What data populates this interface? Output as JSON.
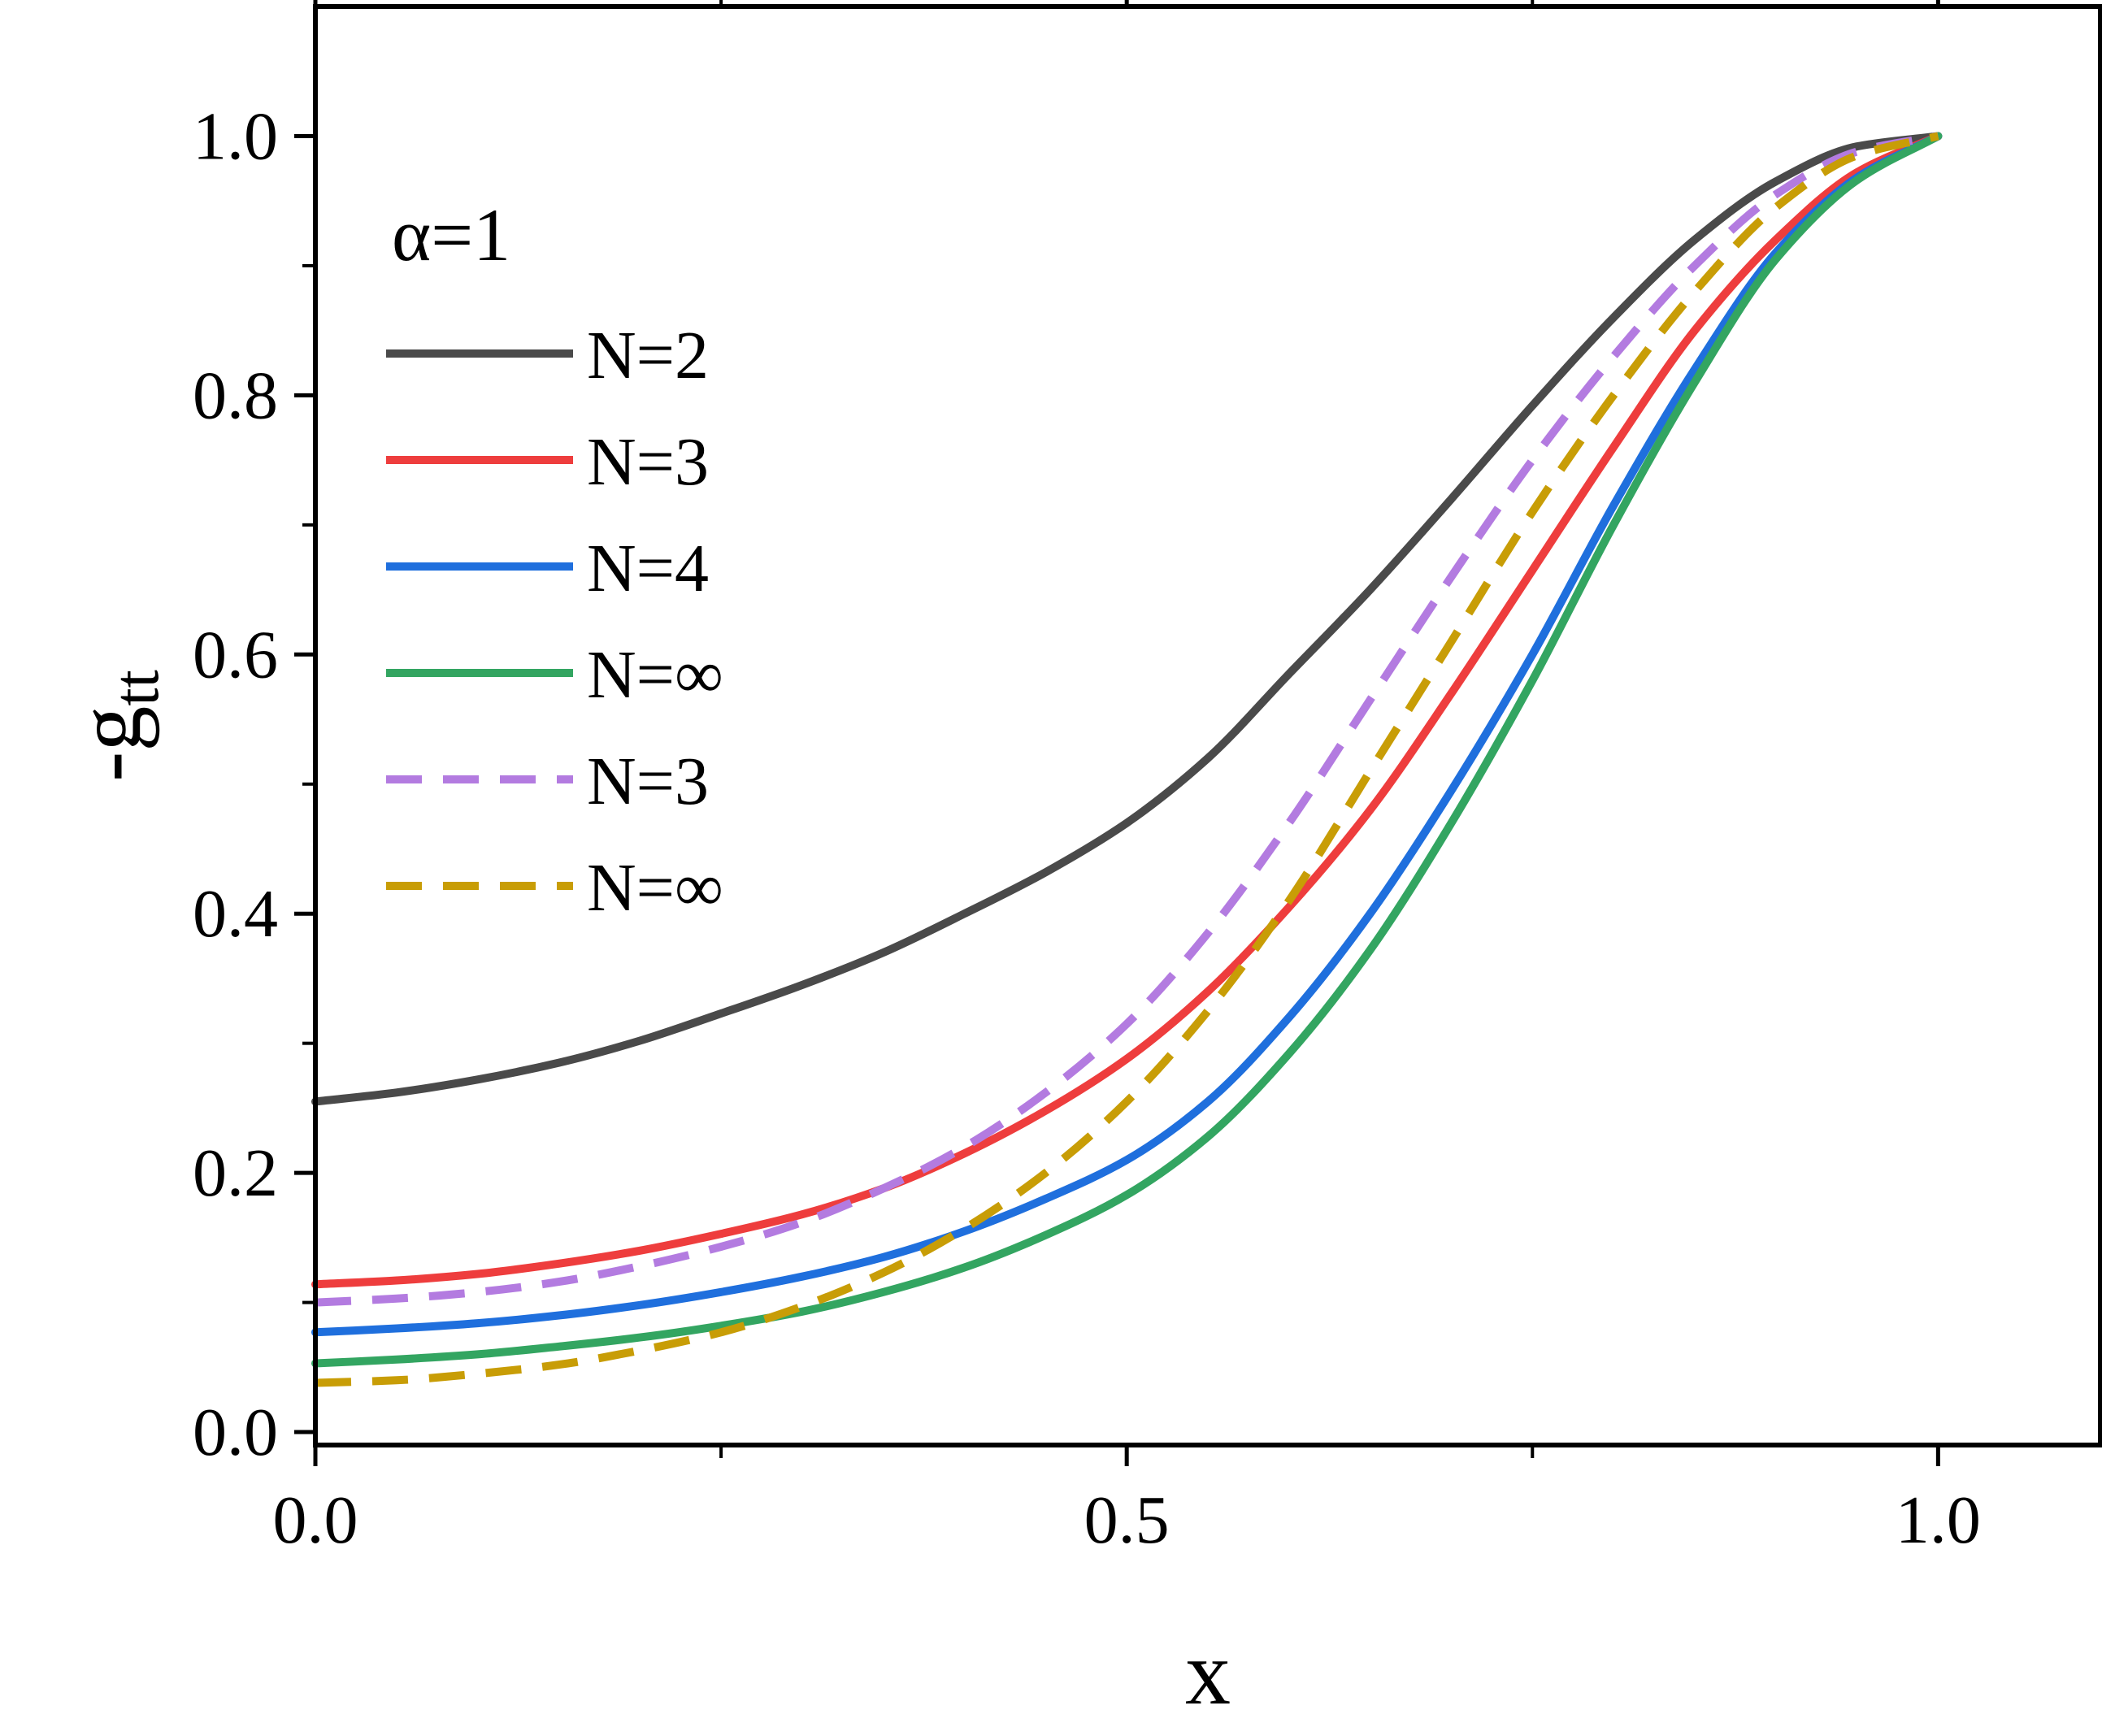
{
  "chart_data": {
    "type": "line",
    "xlabel": "x",
    "ylabel": "-g",
    "ylabel_sub": "tt",
    "xlim": [
      0,
      1.1
    ],
    "ylim": [
      -0.01,
      1.1
    ],
    "x_ticks": [
      0.0,
      0.5,
      1.0
    ],
    "x_tick_labels": [
      "0.0",
      "0.5",
      "1.0"
    ],
    "y_ticks": [
      0.0,
      0.2,
      0.4,
      0.6,
      0.8,
      1.0
    ],
    "y_tick_labels": [
      "0.0",
      "0.2",
      "0.4",
      "0.6",
      "0.8",
      "1.0"
    ],
    "grid": false,
    "legend_position": "top-left",
    "annotation": "α=1",
    "series": [
      {
        "name": "N=2",
        "color": "#4a4a4a",
        "style": "solid",
        "x": [
          0,
          0.05,
          0.1,
          0.15,
          0.2,
          0.25,
          0.3,
          0.35,
          0.4,
          0.45,
          0.5,
          0.55,
          0.6,
          0.65,
          0.7,
          0.75,
          0.8,
          0.85,
          0.9,
          0.95,
          1.0
        ],
        "y": [
          0.255,
          0.262,
          0.272,
          0.285,
          0.302,
          0.323,
          0.345,
          0.37,
          0.4,
          0.432,
          0.47,
          0.52,
          0.585,
          0.65,
          0.72,
          0.792,
          0.86,
          0.92,
          0.965,
          0.992,
          1.0
        ]
      },
      {
        "name": "N=3",
        "color": "#ee3d3d",
        "style": "solid",
        "x": [
          0,
          0.05,
          0.1,
          0.15,
          0.2,
          0.25,
          0.3,
          0.35,
          0.4,
          0.45,
          0.5,
          0.55,
          0.6,
          0.65,
          0.7,
          0.75,
          0.8,
          0.85,
          0.9,
          0.95,
          1.0
        ],
        "y": [
          0.114,
          0.117,
          0.122,
          0.13,
          0.14,
          0.153,
          0.168,
          0.188,
          0.215,
          0.248,
          0.288,
          0.34,
          0.405,
          0.48,
          0.57,
          0.665,
          0.76,
          0.85,
          0.92,
          0.972,
          1.0
        ]
      },
      {
        "name": "N=4",
        "color": "#1f6fdd",
        "style": "solid",
        "x": [
          0,
          0.05,
          0.1,
          0.15,
          0.2,
          0.25,
          0.3,
          0.35,
          0.4,
          0.45,
          0.5,
          0.55,
          0.6,
          0.65,
          0.7,
          0.75,
          0.8,
          0.85,
          0.9,
          0.95,
          1.0
        ],
        "y": [
          0.077,
          0.08,
          0.084,
          0.09,
          0.098,
          0.108,
          0.12,
          0.135,
          0.155,
          0.18,
          0.21,
          0.255,
          0.32,
          0.4,
          0.495,
          0.6,
          0.715,
          0.82,
          0.91,
          0.968,
          1.0
        ]
      },
      {
        "name": "N=∞",
        "color": "#33a561",
        "style": "solid",
        "x": [
          0,
          0.05,
          0.1,
          0.15,
          0.2,
          0.25,
          0.3,
          0.35,
          0.4,
          0.45,
          0.5,
          0.55,
          0.6,
          0.65,
          0.7,
          0.75,
          0.8,
          0.85,
          0.9,
          0.95,
          1.0
        ],
        "y": [
          0.053,
          0.056,
          0.06,
          0.066,
          0.073,
          0.082,
          0.093,
          0.108,
          0.127,
          0.152,
          0.183,
          0.228,
          0.292,
          0.372,
          0.47,
          0.58,
          0.7,
          0.81,
          0.905,
          0.966,
          1.0
        ]
      },
      {
        "name": "N=3",
        "color": "#b37be0",
        "style": "dashed",
        "x": [
          0,
          0.05,
          0.1,
          0.15,
          0.2,
          0.25,
          0.3,
          0.35,
          0.4,
          0.45,
          0.5,
          0.55,
          0.6,
          0.65,
          0.7,
          0.75,
          0.8,
          0.85,
          0.9,
          0.95,
          1.0
        ],
        "y": [
          0.1,
          0.103,
          0.108,
          0.116,
          0.128,
          0.143,
          0.162,
          0.188,
          0.22,
          0.262,
          0.315,
          0.385,
          0.47,
          0.565,
          0.66,
          0.75,
          0.83,
          0.9,
          0.955,
          0.988,
          1.0
        ]
      },
      {
        "name": "N=∞",
        "color": "#c89d06",
        "style": "dashed",
        "x": [
          0,
          0.05,
          0.1,
          0.15,
          0.2,
          0.25,
          0.3,
          0.35,
          0.4,
          0.45,
          0.5,
          0.55,
          0.6,
          0.65,
          0.7,
          0.75,
          0.8,
          0.85,
          0.9,
          0.95,
          1.0
        ],
        "y": [
          0.038,
          0.04,
          0.045,
          0.052,
          0.063,
          0.077,
          0.097,
          0.123,
          0.157,
          0.2,
          0.255,
          0.325,
          0.41,
          0.51,
          0.61,
          0.71,
          0.8,
          0.88,
          0.945,
          0.985,
          1.0
        ]
      }
    ]
  }
}
